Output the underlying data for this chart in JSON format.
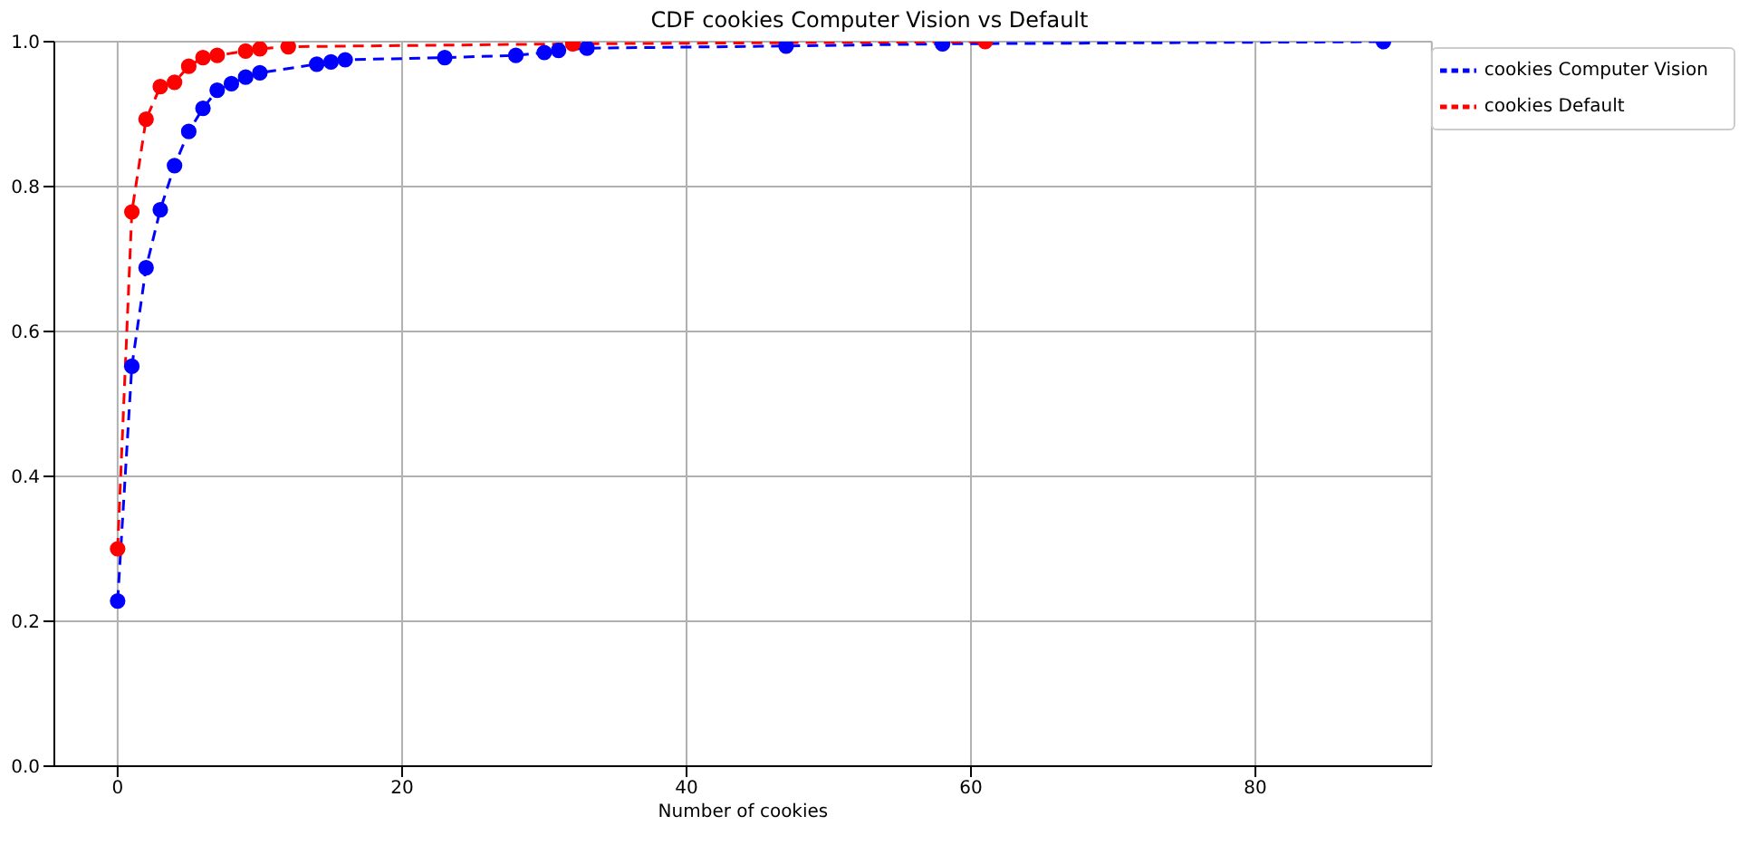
{
  "chart_data": {
    "type": "line",
    "title": "CDF cookies Computer Vision vs Default",
    "xlabel": "Number of cookies",
    "xlim": [
      -4.45,
      92.4
    ],
    "xticks": [
      0,
      20,
      40,
      60,
      80
    ],
    "ylim": [
      0,
      1
    ],
    "yticks": [
      {
        "value": 0,
        "label": "0.0"
      },
      {
        "value": 0.2,
        "label": "0.2"
      },
      {
        "value": 0.4,
        "label": "0.4"
      },
      {
        "value": 0.6,
        "label": "0.6"
      },
      {
        "value": 0.8,
        "label": "0.8"
      },
      {
        "value": 1,
        "label": "1.0"
      }
    ],
    "grid": true,
    "legend": "top right",
    "marker": "circle",
    "line_style": "dashed",
    "series": [
      {
        "name": "cookies Computer Vision",
        "color": "#0000ff",
        "x": [
          0,
          1,
          2,
          3,
          4,
          5,
          6,
          7,
          8,
          9,
          10,
          14,
          15,
          16,
          23,
          28,
          30,
          31,
          33,
          47,
          58,
          89
        ],
        "values": [
          0.228,
          0.552,
          0.688,
          0.768,
          0.829,
          0.876,
          0.908,
          0.933,
          0.942,
          0.951,
          0.957,
          0.969,
          0.972,
          0.975,
          0.978,
          0.981,
          0.985,
          0.988,
          0.991,
          0.994,
          0.997,
          1.0
        ]
      },
      {
        "name": "cookies Default",
        "color": "#ff0000",
        "x": [
          0,
          1,
          2,
          3,
          4,
          5,
          6,
          7,
          9,
          10,
          12,
          32,
          61
        ],
        "values": [
          0.3,
          0.765,
          0.893,
          0.938,
          0.944,
          0.966,
          0.978,
          0.981,
          0.987,
          0.99,
          0.993,
          0.997,
          1.0
        ]
      }
    ]
  }
}
